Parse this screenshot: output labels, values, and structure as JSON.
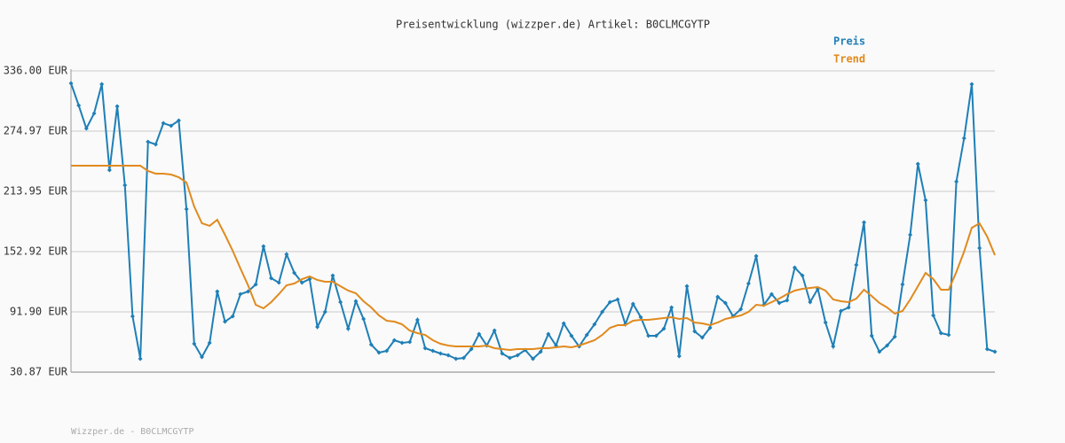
{
  "chart_data": {
    "type": "line",
    "title": "Preisentwicklung (wizzper.de) Artikel: B0CLMCGYTP",
    "footer": "Wizzper.de - B0CLMCGYTP",
    "ylim": [
      30.87,
      336.0
    ],
    "yticks": [
      {
        "value": 30.87,
        "label": "30.87 EUR"
      },
      {
        "value": 91.9,
        "label": "91.90 EUR"
      },
      {
        "value": 152.92,
        "label": "152.92 EUR"
      },
      {
        "value": 213.95,
        "label": "213.95 EUR"
      },
      {
        "value": 274.97,
        "label": "274.97 EUR"
      },
      {
        "value": 336.0,
        "label": "336.00 EUR"
      }
    ],
    "grid": true,
    "legend": "top-right",
    "series": [
      {
        "name": "Preis",
        "color": "#1f7fb6",
        "markers": true,
        "values": [
          323.4,
          301.0,
          277.7,
          292.9,
          322.5,
          235.5,
          300.1,
          220.2,
          87.4,
          44.3,
          264.2,
          261.5,
          283.0,
          280.4,
          285.7,
          196.0,
          59.6,
          46.1,
          60.5,
          112.5,
          82.0,
          87.4,
          109.8,
          112.5,
          119.7,
          158.3,
          126.0,
          121.5,
          150.2,
          131.4,
          121.5,
          125.1,
          76.6,
          91.9,
          128.7,
          101.8,
          74.8,
          102.7,
          84.7,
          58.7,
          50.6,
          52.4,
          63.2,
          60.5,
          61.4,
          83.8,
          55.1,
          52.4,
          49.7,
          47.9,
          44.3,
          45.2,
          54.2,
          69.5,
          57.8,
          73.0,
          49.7,
          45.2,
          47.9,
          53.3,
          44.3,
          51.5,
          69.5,
          57.8,
          80.2,
          67.7,
          56.9,
          68.6,
          79.3,
          91.9,
          101.8,
          104.5,
          79.3,
          100.0,
          86.5,
          67.7,
          67.7,
          74.8,
          96.4,
          47.0,
          117.9,
          72.1,
          65.9,
          75.7,
          107.1,
          100.9,
          87.4,
          94.6,
          120.6,
          148.4,
          99.1,
          109.8,
          100.9,
          103.6,
          136.8,
          128.7,
          101.8,
          115.2,
          81.1,
          56.9,
          92.8,
          96.4,
          139.5,
          182.5,
          67.7,
          51.5,
          57.8,
          66.8,
          119.7,
          170.0,
          241.8,
          205.0,
          88.3,
          70.4,
          68.6,
          223.8,
          267.8,
          322.5,
          156.5,
          54.2,
          51.5
        ]
      },
      {
        "name": "Trend",
        "color": "#e08a1e",
        "markers": false,
        "values": [
          240.0,
          240.0,
          240.0,
          240.0,
          240.0,
          240.0,
          240.0,
          240.0,
          240.0,
          240.0,
          234.6,
          231.9,
          231.9,
          231.0,
          228.3,
          222.9,
          198.7,
          181.6,
          179.0,
          185.2,
          170.0,
          153.8,
          135.9,
          118.8,
          99.1,
          95.5,
          101.8,
          109.8,
          118.8,
          120.6,
          125.1,
          127.8,
          124.2,
          122.4,
          122.4,
          117.9,
          113.4,
          110.7,
          102.7,
          96.4,
          88.3,
          82.9,
          82.0,
          79.3,
          73.0,
          70.4,
          68.6,
          63.2,
          59.6,
          57.8,
          56.9,
          56.9,
          56.9,
          56.9,
          57.8,
          55.1,
          54.2,
          53.3,
          54.2,
          54.2,
          54.2,
          55.1,
          55.1,
          56.0,
          56.9,
          56.0,
          57.8,
          60.5,
          63.2,
          68.6,
          75.7,
          78.4,
          78.4,
          82.9,
          83.8,
          83.8,
          84.7,
          85.6,
          86.5,
          84.7,
          85.6,
          81.1,
          80.2,
          78.4,
          81.1,
          84.7,
          86.5,
          88.3,
          91.9,
          99.1,
          98.2,
          101.8,
          105.4,
          109.8,
          113.4,
          115.2,
          116.1,
          117.0,
          113.4,
          104.5,
          102.7,
          101.8,
          105.4,
          114.3,
          108.0,
          100.9,
          96.4,
          90.1,
          92.8,
          104.5,
          117.9,
          131.4,
          125.1,
          114.3,
          114.3,
          132.3,
          152.9,
          177.1,
          181.6,
          168.2,
          149.3
        ]
      }
    ]
  }
}
